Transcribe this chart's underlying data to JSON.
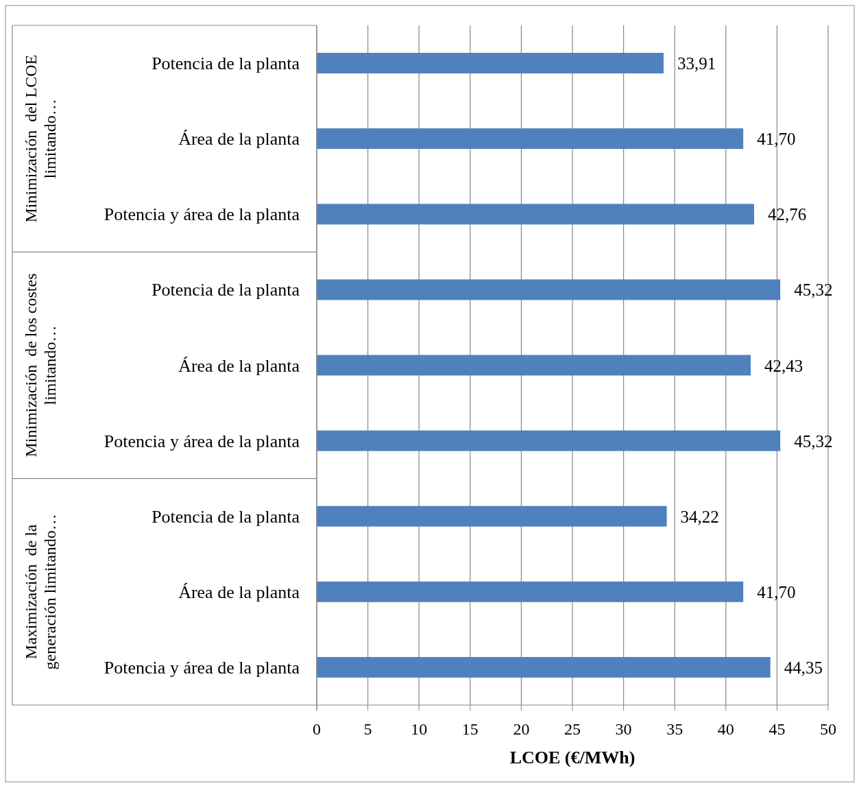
{
  "chart_data": {
    "type": "bar",
    "orientation": "horizontal",
    "xlabel": "LCOE (€/MWh)",
    "categories": [
      "Potencia de la planta",
      "Área de la planta",
      "Potencia y área de la planta",
      "Potencia de la planta",
      "Área de la planta",
      "Potencia y área de la planta",
      "Potencia de la planta",
      "Área de la planta",
      "Potencia y área de la planta"
    ],
    "values": [
      33.91,
      41.7,
      42.76,
      45.32,
      42.43,
      45.32,
      34.22,
      41.7,
      44.35
    ],
    "value_labels": [
      "33,91",
      "41,70",
      "42,76",
      "45,32",
      "42,43",
      "45,32",
      "34,22",
      "41,70",
      "44,35"
    ],
    "color": "#4f81bd",
    "xlim": [
      0,
      50
    ],
    "xticks": [
      0,
      5,
      10,
      15,
      20,
      25,
      30,
      35,
      40,
      45,
      50
    ],
    "grid": "x",
    "annotations": [
      "Minimización  del LCOE\nlimitando…",
      "Minimización  de los costes\nlimitando…",
      "Maximización  de la\ngeneración limitando…"
    ]
  }
}
